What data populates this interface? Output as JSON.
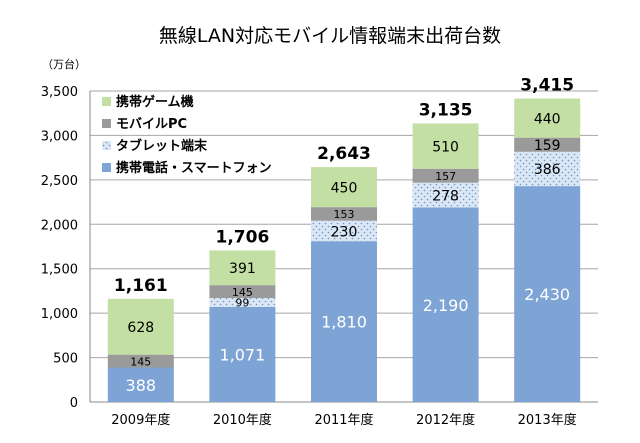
{
  "chart_data": {
    "type": "bar",
    "stacked": true,
    "title": "無線LAN対応モバイル情報端末出荷台数",
    "unit_label": "（万台）",
    "categories": [
      "2009年度",
      "2010年度",
      "2011年度",
      "2012年度",
      "2013年度"
    ],
    "series": [
      {
        "name": "携帯電話・スマートフォン",
        "color": "#7ea4d6",
        "values": [
          388,
          1071,
          1810,
          2190,
          2430
        ]
      },
      {
        "name": "タブレット端末",
        "color": "#dbe7f5",
        "values": [
          0,
          99,
          230,
          278,
          386
        ]
      },
      {
        "name": "モバイルPC",
        "color": "#9a9a9a",
        "values": [
          145,
          145,
          153,
          157,
          159
        ]
      },
      {
        "name": "携帯ゲーム機",
        "color": "#c3dfa3",
        "values": [
          628,
          391,
          450,
          510,
          440
        ]
      }
    ],
    "totals": [
      1161,
      1706,
      2643,
      3135,
      3415
    ],
    "total_labels": [
      "1,161",
      "1,706",
      "2,643",
      "3,135",
      "3,415"
    ],
    "value_labels": [
      [
        "388",
        "1,071",
        "1,810",
        "2,190",
        "2,430"
      ],
      [
        "",
        "99",
        "230",
        "278",
        "386"
      ],
      [
        "145",
        "145",
        "153",
        "157",
        "159"
      ],
      [
        "628",
        "391",
        "450",
        "510",
        "440"
      ]
    ],
    "ylim": [
      0,
      3500
    ],
    "yticks": [
      0,
      500,
      1000,
      1500,
      2000,
      2500,
      3000,
      3500
    ],
    "ytick_labels": [
      "0",
      "500",
      "1,000",
      "1,500",
      "2,000",
      "2,500",
      "3,000",
      "3,500"
    ],
    "grid": true,
    "legend_position": "top-left",
    "legend_order": [
      "携帯ゲーム機",
      "モバイルPC",
      "タブレット端末",
      "携帯電話・スマートフォン"
    ]
  }
}
